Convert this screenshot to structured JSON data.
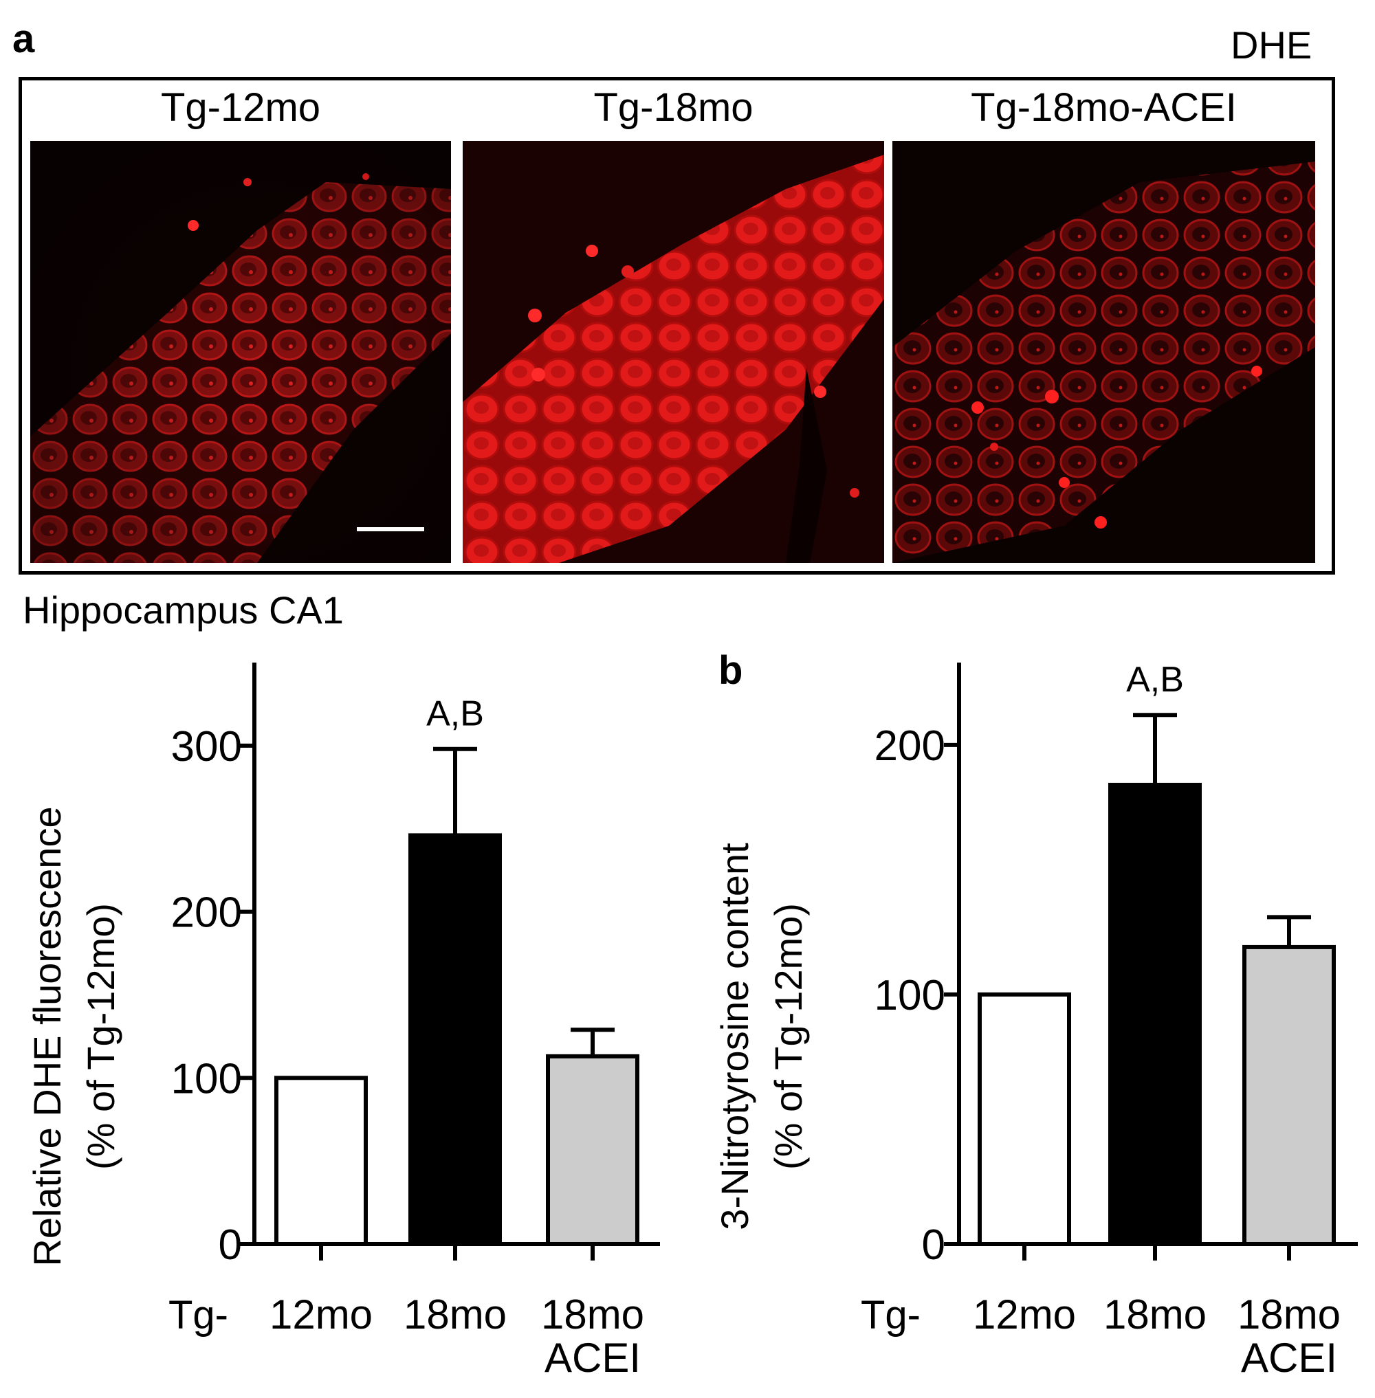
{
  "figure": {
    "panel_a_letter": "a",
    "panel_b_letter": "b",
    "stain_label": "DHE",
    "region_label": "Hippocampus CA1",
    "scale_bar": true,
    "images": [
      {
        "title": "Tg-12mo",
        "intensity": "moderate"
      },
      {
        "title": "Tg-18mo",
        "intensity": "high"
      },
      {
        "title": "Tg-18mo-ACEI",
        "intensity": "low"
      }
    ],
    "colors": {
      "stain": "#e01010",
      "background": "#080000"
    }
  },
  "chart_data": [
    {
      "type": "bar",
      "title": "",
      "ylabel_line1": "Relative DHE fluorescence",
      "ylabel_line2": "(% of Tg-12mo)",
      "xlabel": "",
      "x_prefix": "Tg-",
      "categories": [
        {
          "line1": "12mo",
          "line2": ""
        },
        {
          "line1": "18mo",
          "line2": ""
        },
        {
          "line1": "18mo",
          "line2": "ACEI"
        }
      ],
      "values": [
        100,
        246,
        113
      ],
      "errors": [
        0,
        52,
        16
      ],
      "annotations": [
        "",
        "A,B",
        ""
      ],
      "fills": [
        "#ffffff",
        "#000000",
        "#cccccc"
      ],
      "ylim": [
        0,
        350
      ],
      "yticks": [
        0,
        100,
        200,
        300
      ],
      "grid": false
    },
    {
      "type": "bar",
      "title": "",
      "ylabel_line1": "3-Nitrotyrosine content",
      "ylabel_line2": "(% of Tg-12mo)",
      "xlabel": "",
      "x_prefix": "Tg-",
      "categories": [
        {
          "line1": "12mo",
          "line2": ""
        },
        {
          "line1": "18mo",
          "line2": ""
        },
        {
          "line1": "18mo",
          "line2": "ACEI"
        }
      ],
      "values": [
        100,
        184,
        119
      ],
      "errors": [
        0,
        28,
        12
      ],
      "annotations": [
        "",
        "A,B",
        ""
      ],
      "fills": [
        "#ffffff",
        "#000000",
        "#cccccc"
      ],
      "ylim": [
        0,
        233
      ],
      "yticks": [
        0,
        100,
        200
      ],
      "grid": false
    }
  ]
}
